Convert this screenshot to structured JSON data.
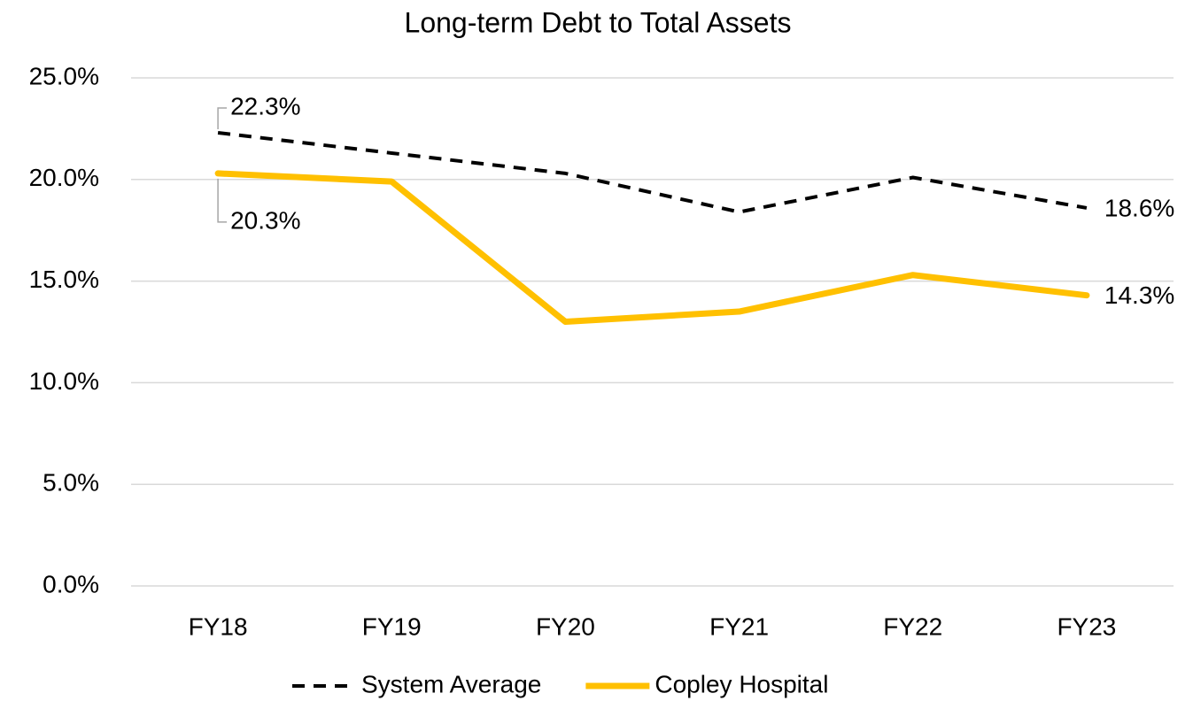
{
  "chart_data": {
    "type": "line",
    "title": "Long-term Debt to Total Assets",
    "categories": [
      "FY18",
      "FY19",
      "FY20",
      "FY21",
      "FY22",
      "FY23"
    ],
    "series": [
      {
        "name": "System Average",
        "color": "#000000",
        "dashed": true,
        "values": [
          22.3,
          21.3,
          20.3,
          18.4,
          20.1,
          18.6
        ],
        "value_labels": [
          "22.3%",
          null,
          null,
          null,
          null,
          "18.6%"
        ]
      },
      {
        "name": "Copley Hospital",
        "color": "#ffc000",
        "dashed": false,
        "values": [
          20.3,
          19.9,
          13.0,
          13.5,
          15.3,
          14.3
        ],
        "value_labels": [
          "20.3%",
          null,
          null,
          null,
          null,
          "14.3%"
        ]
      }
    ],
    "ylim": [
      0,
      25
    ],
    "yticks": [
      {
        "value": 0,
        "label": "0.0%"
      },
      {
        "value": 5,
        "label": "5.0%"
      },
      {
        "value": 10,
        "label": "10.0%"
      },
      {
        "value": 15,
        "label": "15.0%"
      },
      {
        "value": 20,
        "label": "20.0%"
      },
      {
        "value": 25,
        "label": "25.0%"
      }
    ],
    "grid": true,
    "legend": "bottom"
  }
}
